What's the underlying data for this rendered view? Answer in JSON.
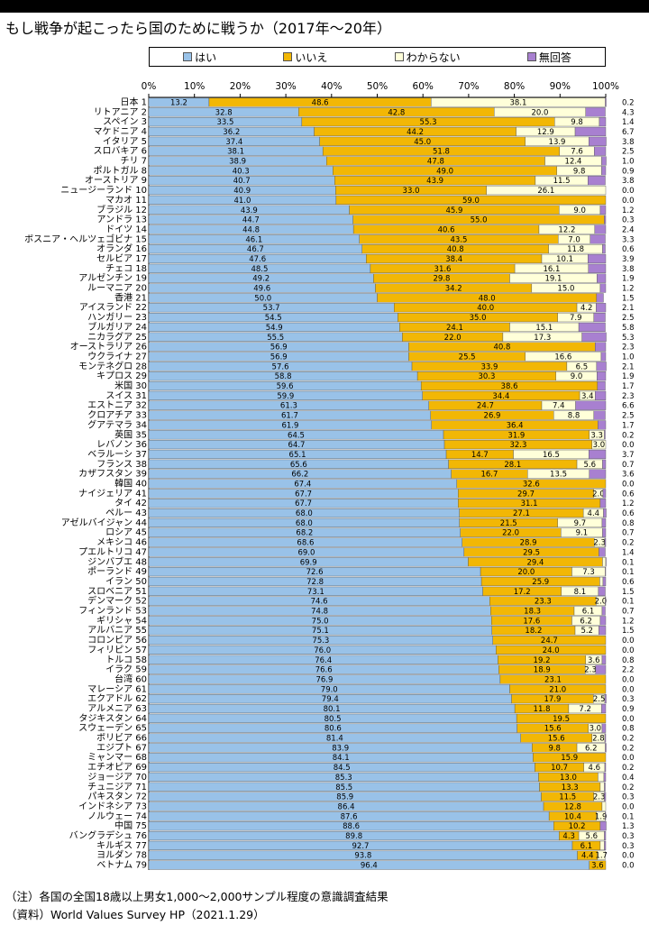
{
  "title": "もし戦争が起こったら国のために戦うか（2017年〜20年）",
  "note": "（注）各国の全国18歳以上男女1,000〜2,000サンプル程度の意識調査結果",
  "source": "（資料）World Values Survey HP（2021.1.29）",
  "colors": {
    "yes": "#99c2e8",
    "no": "#f2b705",
    "unknown": "#ffffd9",
    "noanswer": "#a880d0"
  },
  "chart_data": {
    "type": "bar",
    "orientation": "horizontal",
    "stacked": true,
    "xlim": [
      0,
      100
    ],
    "x_ticks": [
      "0%",
      "10%",
      "20%",
      "30%",
      "40%",
      "50%",
      "60%",
      "70%",
      "80%",
      "90%",
      "100%"
    ],
    "series": [
      {
        "name": "はい",
        "key": "yes"
      },
      {
        "name": "いいえ",
        "key": "no"
      },
      {
        "name": "わからない",
        "key": "unknown"
      },
      {
        "name": "無回答",
        "key": "noanswer"
      }
    ],
    "rows": [
      {
        "country": "日本",
        "rank": "1",
        "yes": 13.2,
        "no": 48.6,
        "unknown": 38.1,
        "noanswer": 0.2
      },
      {
        "country": "リトアニア",
        "rank": "2",
        "yes": 32.8,
        "no": 42.8,
        "unknown": 20.0,
        "noanswer": 4.3
      },
      {
        "country": "スペイン",
        "rank": "3",
        "yes": 33.5,
        "no": 55.3,
        "unknown": 9.8,
        "noanswer": 1.4
      },
      {
        "country": "マケドニア",
        "rank": "4",
        "yes": 36.2,
        "no": 44.2,
        "unknown": 12.9,
        "noanswer": 6.7
      },
      {
        "country": "イタリア",
        "rank": "5",
        "yes": 37.4,
        "no": 45.0,
        "unknown": 13.9,
        "noanswer": 3.8
      },
      {
        "country": "スロバキア",
        "rank": "6",
        "yes": 38.1,
        "no": 51.8,
        "unknown": 7.6,
        "noanswer": 2.5
      },
      {
        "country": "チリ",
        "rank": "7",
        "yes": 38.9,
        "no": 47.8,
        "unknown": 12.4,
        "noanswer": 1.0
      },
      {
        "country": "ポルトガル",
        "rank": "8",
        "yes": 40.3,
        "no": 49.0,
        "unknown": 9.8,
        "noanswer": 0.9
      },
      {
        "country": "オーストリア",
        "rank": "9",
        "yes": 40.7,
        "no": 43.9,
        "unknown": 11.5,
        "noanswer": 3.8
      },
      {
        "country": "ニュージーランド",
        "rank": "10",
        "yes": 40.9,
        "no": 33.0,
        "unknown": 26.1,
        "noanswer": 0.0
      },
      {
        "country": "マカオ",
        "rank": "11",
        "yes": 41.0,
        "no": 59.0,
        "unknown": 0.0,
        "noanswer": 0.0
      },
      {
        "country": "ブラジル",
        "rank": "12",
        "yes": 43.9,
        "no": 45.9,
        "unknown": 9.0,
        "noanswer": 1.2
      },
      {
        "country": "アンドラ",
        "rank": "13",
        "yes": 44.7,
        "no": 55.0,
        "unknown": 0.0,
        "noanswer": 0.3
      },
      {
        "country": "ドイツ",
        "rank": "14",
        "yes": 44.8,
        "no": 40.6,
        "unknown": 12.2,
        "noanswer": 2.4
      },
      {
        "country": "ボスニア・ヘルツェゴビナ",
        "rank": "15",
        "yes": 46.1,
        "no": 43.5,
        "unknown": 7.0,
        "noanswer": 3.3
      },
      {
        "country": "オランダ",
        "rank": "16",
        "yes": 46.7,
        "no": 40.8,
        "unknown": 11.8,
        "noanswer": 0.6
      },
      {
        "country": "セルビア",
        "rank": "17",
        "yes": 47.6,
        "no": 38.4,
        "unknown": 10.1,
        "noanswer": 3.9
      },
      {
        "country": "チェコ",
        "rank": "18",
        "yes": 48.5,
        "no": 31.6,
        "unknown": 16.1,
        "noanswer": 3.8
      },
      {
        "country": "アルゼンチン",
        "rank": "19",
        "yes": 49.2,
        "no": 29.8,
        "unknown": 19.1,
        "noanswer": 1.9
      },
      {
        "country": "ルーマニア",
        "rank": "20",
        "yes": 49.6,
        "no": 34.2,
        "unknown": 15.0,
        "noanswer": 1.2
      },
      {
        "country": "香港",
        "rank": "21",
        "yes": 50.0,
        "no": 48.0,
        "unknown": 0.0,
        "noanswer": 1.5
      },
      {
        "country": "アイスランド",
        "rank": "22",
        "yes": 53.7,
        "no": 40.0,
        "unknown": 4.2,
        "noanswer": 2.1
      },
      {
        "country": "ハンガリー",
        "rank": "23",
        "yes": 54.5,
        "no": 35.0,
        "unknown": 7.9,
        "noanswer": 2.5
      },
      {
        "country": "ブルガリア",
        "rank": "24",
        "yes": 54.9,
        "no": 24.1,
        "unknown": 15.1,
        "noanswer": 5.8
      },
      {
        "country": "ニカラグア",
        "rank": "25",
        "yes": 55.5,
        "no": 22.0,
        "unknown": 17.3,
        "noanswer": 5.3
      },
      {
        "country": "オーストラリア",
        "rank": "26",
        "yes": 56.9,
        "no": 40.8,
        "unknown": 0.0,
        "noanswer": 2.3
      },
      {
        "country": "ウクライナ",
        "rank": "27",
        "yes": 56.9,
        "no": 25.5,
        "unknown": 16.6,
        "noanswer": 1.0
      },
      {
        "country": "モンテネグロ",
        "rank": "28",
        "yes": 57.6,
        "no": 33.9,
        "unknown": 6.5,
        "noanswer": 2.1
      },
      {
        "country": "キプロス",
        "rank": "29",
        "yes": 58.8,
        "no": 30.3,
        "unknown": 9.0,
        "noanswer": 1.9
      },
      {
        "country": "米国",
        "rank": "30",
        "yes": 59.6,
        "no": 38.6,
        "unknown": 0.0,
        "noanswer": 1.7
      },
      {
        "country": "スイス",
        "rank": "31",
        "yes": 59.9,
        "no": 34.4,
        "unknown": 3.4,
        "noanswer": 2.3
      },
      {
        "country": "エストニア",
        "rank": "32",
        "yes": 61.3,
        "no": 24.7,
        "unknown": 7.4,
        "noanswer": 6.6
      },
      {
        "country": "クロアチア",
        "rank": "33",
        "yes": 61.7,
        "no": 26.9,
        "unknown": 8.8,
        "noanswer": 2.5
      },
      {
        "country": "グアテマラ",
        "rank": "34",
        "yes": 61.9,
        "no": 36.4,
        "unknown": 0.0,
        "noanswer": 1.7
      },
      {
        "country": "英国",
        "rank": "35",
        "yes": 64.5,
        "no": 31.9,
        "unknown": 3.3,
        "noanswer": 0.2
      },
      {
        "country": "レバノン",
        "rank": "36",
        "yes": 64.7,
        "no": 32.3,
        "unknown": 3.0,
        "noanswer": 0.0
      },
      {
        "country": "ベラルーシ",
        "rank": "37",
        "yes": 65.1,
        "no": 14.7,
        "unknown": 16.5,
        "noanswer": 3.7
      },
      {
        "country": "フランス",
        "rank": "38",
        "yes": 65.6,
        "no": 28.1,
        "unknown": 5.6,
        "noanswer": 0.7
      },
      {
        "country": "カザフスタン",
        "rank": "39",
        "yes": 66.2,
        "no": 16.7,
        "unknown": 13.5,
        "noanswer": 3.6
      },
      {
        "country": "韓国",
        "rank": "40",
        "yes": 67.4,
        "no": 32.6,
        "unknown": 0.0,
        "noanswer": 0.0
      },
      {
        "country": "ナイジェリア",
        "rank": "41",
        "yes": 67.7,
        "no": 29.7,
        "unknown": 2.0,
        "noanswer": 0.6
      },
      {
        "country": "タイ",
        "rank": "42",
        "yes": 67.7,
        "no": 31.1,
        "unknown": 0.0,
        "noanswer": 1.2
      },
      {
        "country": "ペルー",
        "rank": "43",
        "yes": 68.0,
        "no": 27.1,
        "unknown": 4.4,
        "noanswer": 0.6
      },
      {
        "country": "アゼルバイジャン",
        "rank": "44",
        "yes": 68.0,
        "no": 21.5,
        "unknown": 9.7,
        "noanswer": 0.8
      },
      {
        "country": "ロシア",
        "rank": "45",
        "yes": 68.2,
        "no": 22.0,
        "unknown": 9.1,
        "noanswer": 0.7
      },
      {
        "country": "メキシコ",
        "rank": "46",
        "yes": 68.6,
        "no": 28.9,
        "unknown": 2.3,
        "noanswer": 0.2
      },
      {
        "country": "プエルトリコ",
        "rank": "47",
        "yes": 69.0,
        "no": 29.5,
        "unknown": 0.0,
        "noanswer": 1.4
      },
      {
        "country": "ジンバブエ",
        "rank": "48",
        "yes": 69.9,
        "no": 29.4,
        "unknown": 0.7,
        "noanswer": 0.1
      },
      {
        "country": "ポーランド",
        "rank": "49",
        "yes": 72.6,
        "no": 20.0,
        "unknown": 7.3,
        "noanswer": 0.1
      },
      {
        "country": "イラン",
        "rank": "50",
        "yes": 72.8,
        "no": 25.9,
        "unknown": 0.7,
        "noanswer": 0.6
      },
      {
        "country": "スロベニア",
        "rank": "51",
        "yes": 73.1,
        "no": 17.2,
        "unknown": 8.1,
        "noanswer": 1.5
      },
      {
        "country": "デンマーク",
        "rank": "52",
        "yes": 74.6,
        "no": 23.3,
        "unknown": 2.0,
        "noanswer": 0.1
      },
      {
        "country": "フィンランド",
        "rank": "53",
        "yes": 74.8,
        "no": 18.3,
        "unknown": 6.1,
        "noanswer": 0.7
      },
      {
        "country": "ギリシャ",
        "rank": "54",
        "yes": 75.0,
        "no": 17.6,
        "unknown": 6.2,
        "noanswer": 1.2
      },
      {
        "country": "アルバニア",
        "rank": "55",
        "yes": 75.1,
        "no": 18.2,
        "unknown": 5.2,
        "noanswer": 1.5
      },
      {
        "country": "コロンビア",
        "rank": "56",
        "yes": 75.3,
        "no": 24.7,
        "unknown": 0.0,
        "noanswer": 0.0
      },
      {
        "country": "フィリピン",
        "rank": "57",
        "yes": 76.0,
        "no": 24.0,
        "unknown": 0.0,
        "noanswer": 0.0
      },
      {
        "country": "トルコ",
        "rank": "58",
        "yes": 76.4,
        "no": 19.2,
        "unknown": 3.6,
        "noanswer": 0.8
      },
      {
        "country": "イラク",
        "rank": "59",
        "yes": 76.6,
        "no": 18.9,
        "unknown": 2.3,
        "noanswer": 2.2
      },
      {
        "country": "台湾",
        "rank": "60",
        "yes": 76.9,
        "no": 23.1,
        "unknown": 0.0,
        "noanswer": 0.0
      },
      {
        "country": "マレーシア",
        "rank": "61",
        "yes": 79.0,
        "no": 21.0,
        "unknown": 0.0,
        "noanswer": 0.0
      },
      {
        "country": "エクアドル",
        "rank": "62",
        "yes": 79.4,
        "no": 17.9,
        "unknown": 2.5,
        "noanswer": 0.3
      },
      {
        "country": "アルメニア",
        "rank": "63",
        "yes": 80.1,
        "no": 11.8,
        "unknown": 7.2,
        "noanswer": 0.9
      },
      {
        "country": "タジキスタン",
        "rank": "64",
        "yes": 80.5,
        "no": 19.5,
        "unknown": 0.0,
        "noanswer": 0.0
      },
      {
        "country": "スウェーデン",
        "rank": "65",
        "yes": 80.6,
        "no": 15.6,
        "unknown": 3.0,
        "noanswer": 0.8
      },
      {
        "country": "ボリビア",
        "rank": "66",
        "yes": 81.4,
        "no": 15.6,
        "unknown": 2.8,
        "noanswer": 0.2
      },
      {
        "country": "エジプト",
        "rank": "67",
        "yes": 83.9,
        "no": 9.8,
        "unknown": 6.2,
        "noanswer": 0.2
      },
      {
        "country": "ミャンマー",
        "rank": "68",
        "yes": 84.1,
        "no": 15.9,
        "unknown": 0.0,
        "noanswer": 0.0
      },
      {
        "country": "エチオピア",
        "rank": "69",
        "yes": 84.5,
        "no": 10.7,
        "unknown": 4.6,
        "noanswer": 0.2
      },
      {
        "country": "ジョージア",
        "rank": "70",
        "yes": 85.3,
        "no": 13.0,
        "unknown": 1.3,
        "noanswer": 0.4
      },
      {
        "country": "チュニジア",
        "rank": "71",
        "yes": 85.5,
        "no": 13.3,
        "unknown": 0.9,
        "noanswer": 0.2
      },
      {
        "country": "パキスタン",
        "rank": "72",
        "yes": 85.9,
        "no": 11.5,
        "unknown": 2.3,
        "noanswer": 0.3
      },
      {
        "country": "インドネシア",
        "rank": "73",
        "yes": 86.4,
        "no": 12.8,
        "unknown": 0.8,
        "noanswer": 0.0
      },
      {
        "country": "ノルウェー",
        "rank": "74",
        "yes": 87.6,
        "no": 10.4,
        "unknown": 1.9,
        "noanswer": 0.1
      },
      {
        "country": "中国",
        "rank": "75",
        "yes": 88.6,
        "no": 10.2,
        "unknown": 0.0,
        "noanswer": 1.3
      },
      {
        "country": "バングラデシュ",
        "rank": "76",
        "yes": 89.8,
        "no": 4.3,
        "unknown": 5.6,
        "noanswer": 0.3
      },
      {
        "country": "キルギス",
        "rank": "77",
        "yes": 92.7,
        "no": 6.1,
        "unknown": 0.9,
        "noanswer": 0.3
      },
      {
        "country": "ヨルダン",
        "rank": "78",
        "yes": 93.8,
        "no": 4.4,
        "unknown": 1.7,
        "noanswer": 0.0
      },
      {
        "country": "ベトナム",
        "rank": "79",
        "yes": 96.4,
        "no": 3.6,
        "unknown": 0.0,
        "noanswer": 0.0
      }
    ]
  }
}
